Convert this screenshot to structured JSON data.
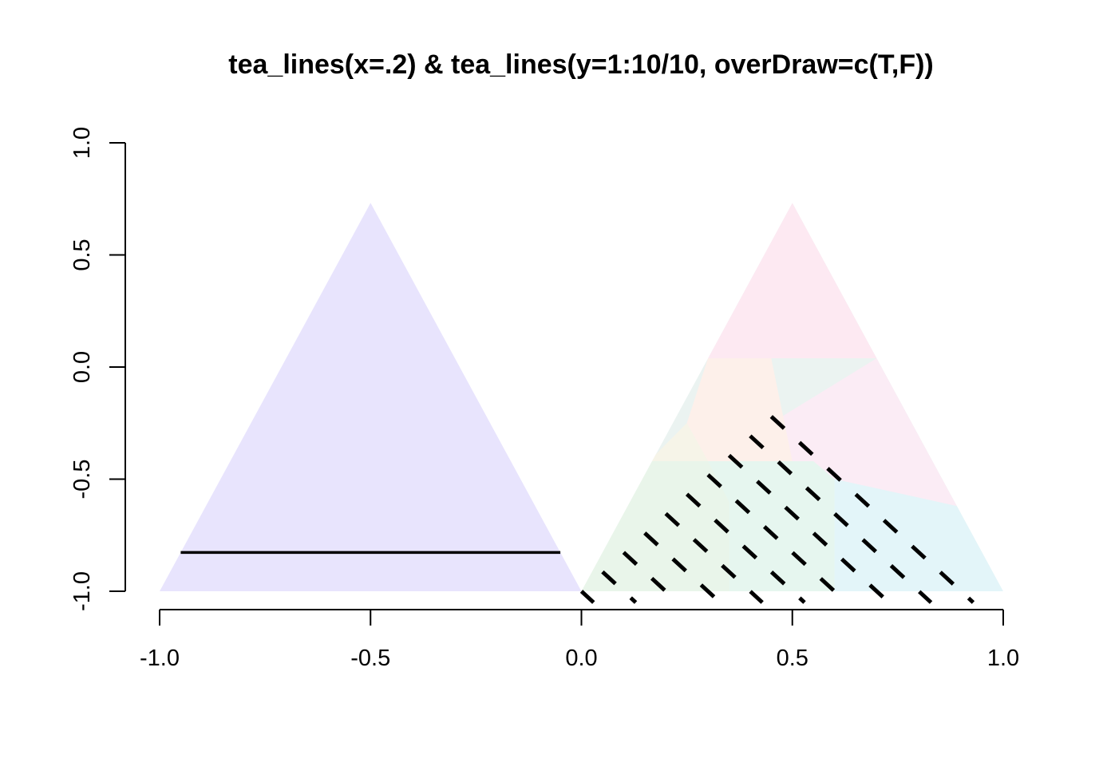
{
  "chart_data": {
    "type": "ternary",
    "title": "tea_lines(x=.2)  &  tea_lines(y=1:10/10, overDraw=c(T,F))",
    "xlabel": "",
    "ylabel": "",
    "xlim": [
      -1.0,
      1.0
    ],
    "ylim": [
      -1.0,
      1.0
    ],
    "xticks": [
      -1.0,
      -0.5,
      0.0,
      0.5,
      1.0
    ],
    "xtick_labels": [
      "-1.0",
      "-0.5",
      "0.0",
      "0.5",
      "1.0"
    ],
    "yticks": [
      -1.0,
      -0.5,
      0.0,
      0.5,
      1.0
    ],
    "ytick_labels": [
      "-1.0",
      "-0.5",
      "0.0",
      "0.5",
      "1.0"
    ],
    "grid": false,
    "left_triangle": {
      "vertices": [
        [
          -1.0,
          -1.0
        ],
        [
          0.0,
          -1.0
        ],
        [
          -0.5,
          0.732
        ]
      ],
      "color": "#e8e4fd"
    },
    "left_line": {
      "x": [
        -0.95,
        -0.05
      ],
      "y": [
        -0.827,
        -0.827
      ],
      "color": "#000000"
    },
    "right_triangle": {
      "vertices": [
        [
          0.0,
          -1.0
        ],
        [
          1.0,
          -1.0
        ],
        [
          0.5,
          0.732
        ]
      ],
      "regions": [
        {
          "color": "#fde9f2",
          "polygon": [
            [
              0.5,
              0.732
            ],
            [
              0.7,
              0.039
            ],
            [
              0.3,
              0.039
            ]
          ]
        },
        {
          "color": "#fbecf5",
          "polygon": [
            [
              0.7,
              0.039
            ],
            [
              0.89,
              -0.62
            ],
            [
              0.6,
              -0.5
            ],
            [
              0.5,
              -0.42
            ],
            [
              0.45,
              -0.25
            ]
          ]
        },
        {
          "color": "#fdf0ea",
          "polygon": [
            [
              0.3,
              0.039
            ],
            [
              0.45,
              0.039
            ],
            [
              0.5,
              -0.42
            ],
            [
              0.3,
              -0.42
            ],
            [
              0.25,
              -0.25
            ]
          ]
        },
        {
          "color": "#f6f4e8",
          "polygon": [
            [
              0.25,
              -0.25
            ],
            [
              0.3,
              -0.42
            ],
            [
              0.16,
              -0.42
            ]
          ]
        },
        {
          "color": "#e9f5ea",
          "polygon": [
            [
              0.16,
              -0.42
            ],
            [
              0.3,
              -0.42
            ],
            [
              0.35,
              -0.6
            ],
            [
              0.35,
              -1.0
            ],
            [
              0.0,
              -1.0
            ]
          ]
        },
        {
          "color": "#e6f6ef",
          "polygon": [
            [
              0.3,
              -0.42
            ],
            [
              0.55,
              -0.42
            ],
            [
              0.6,
              -0.5
            ],
            [
              0.6,
              -1.0
            ],
            [
              0.35,
              -1.0
            ],
            [
              0.35,
              -0.6
            ]
          ]
        },
        {
          "color": "#e3f5f9",
          "polygon": [
            [
              0.55,
              -0.42
            ],
            [
              0.6,
              -0.5
            ],
            [
              0.89,
              -0.62
            ],
            [
              1.0,
              -1.0
            ],
            [
              0.6,
              -1.0
            ],
            [
              0.6,
              -0.5
            ]
          ]
        }
      ]
    },
    "dashed_lines": {
      "y_values": [
        0.1,
        0.2,
        0.3,
        0.4,
        0.5,
        0.6,
        0.7,
        0.8,
        0.9,
        1.0
      ],
      "color": "#000000"
    }
  }
}
